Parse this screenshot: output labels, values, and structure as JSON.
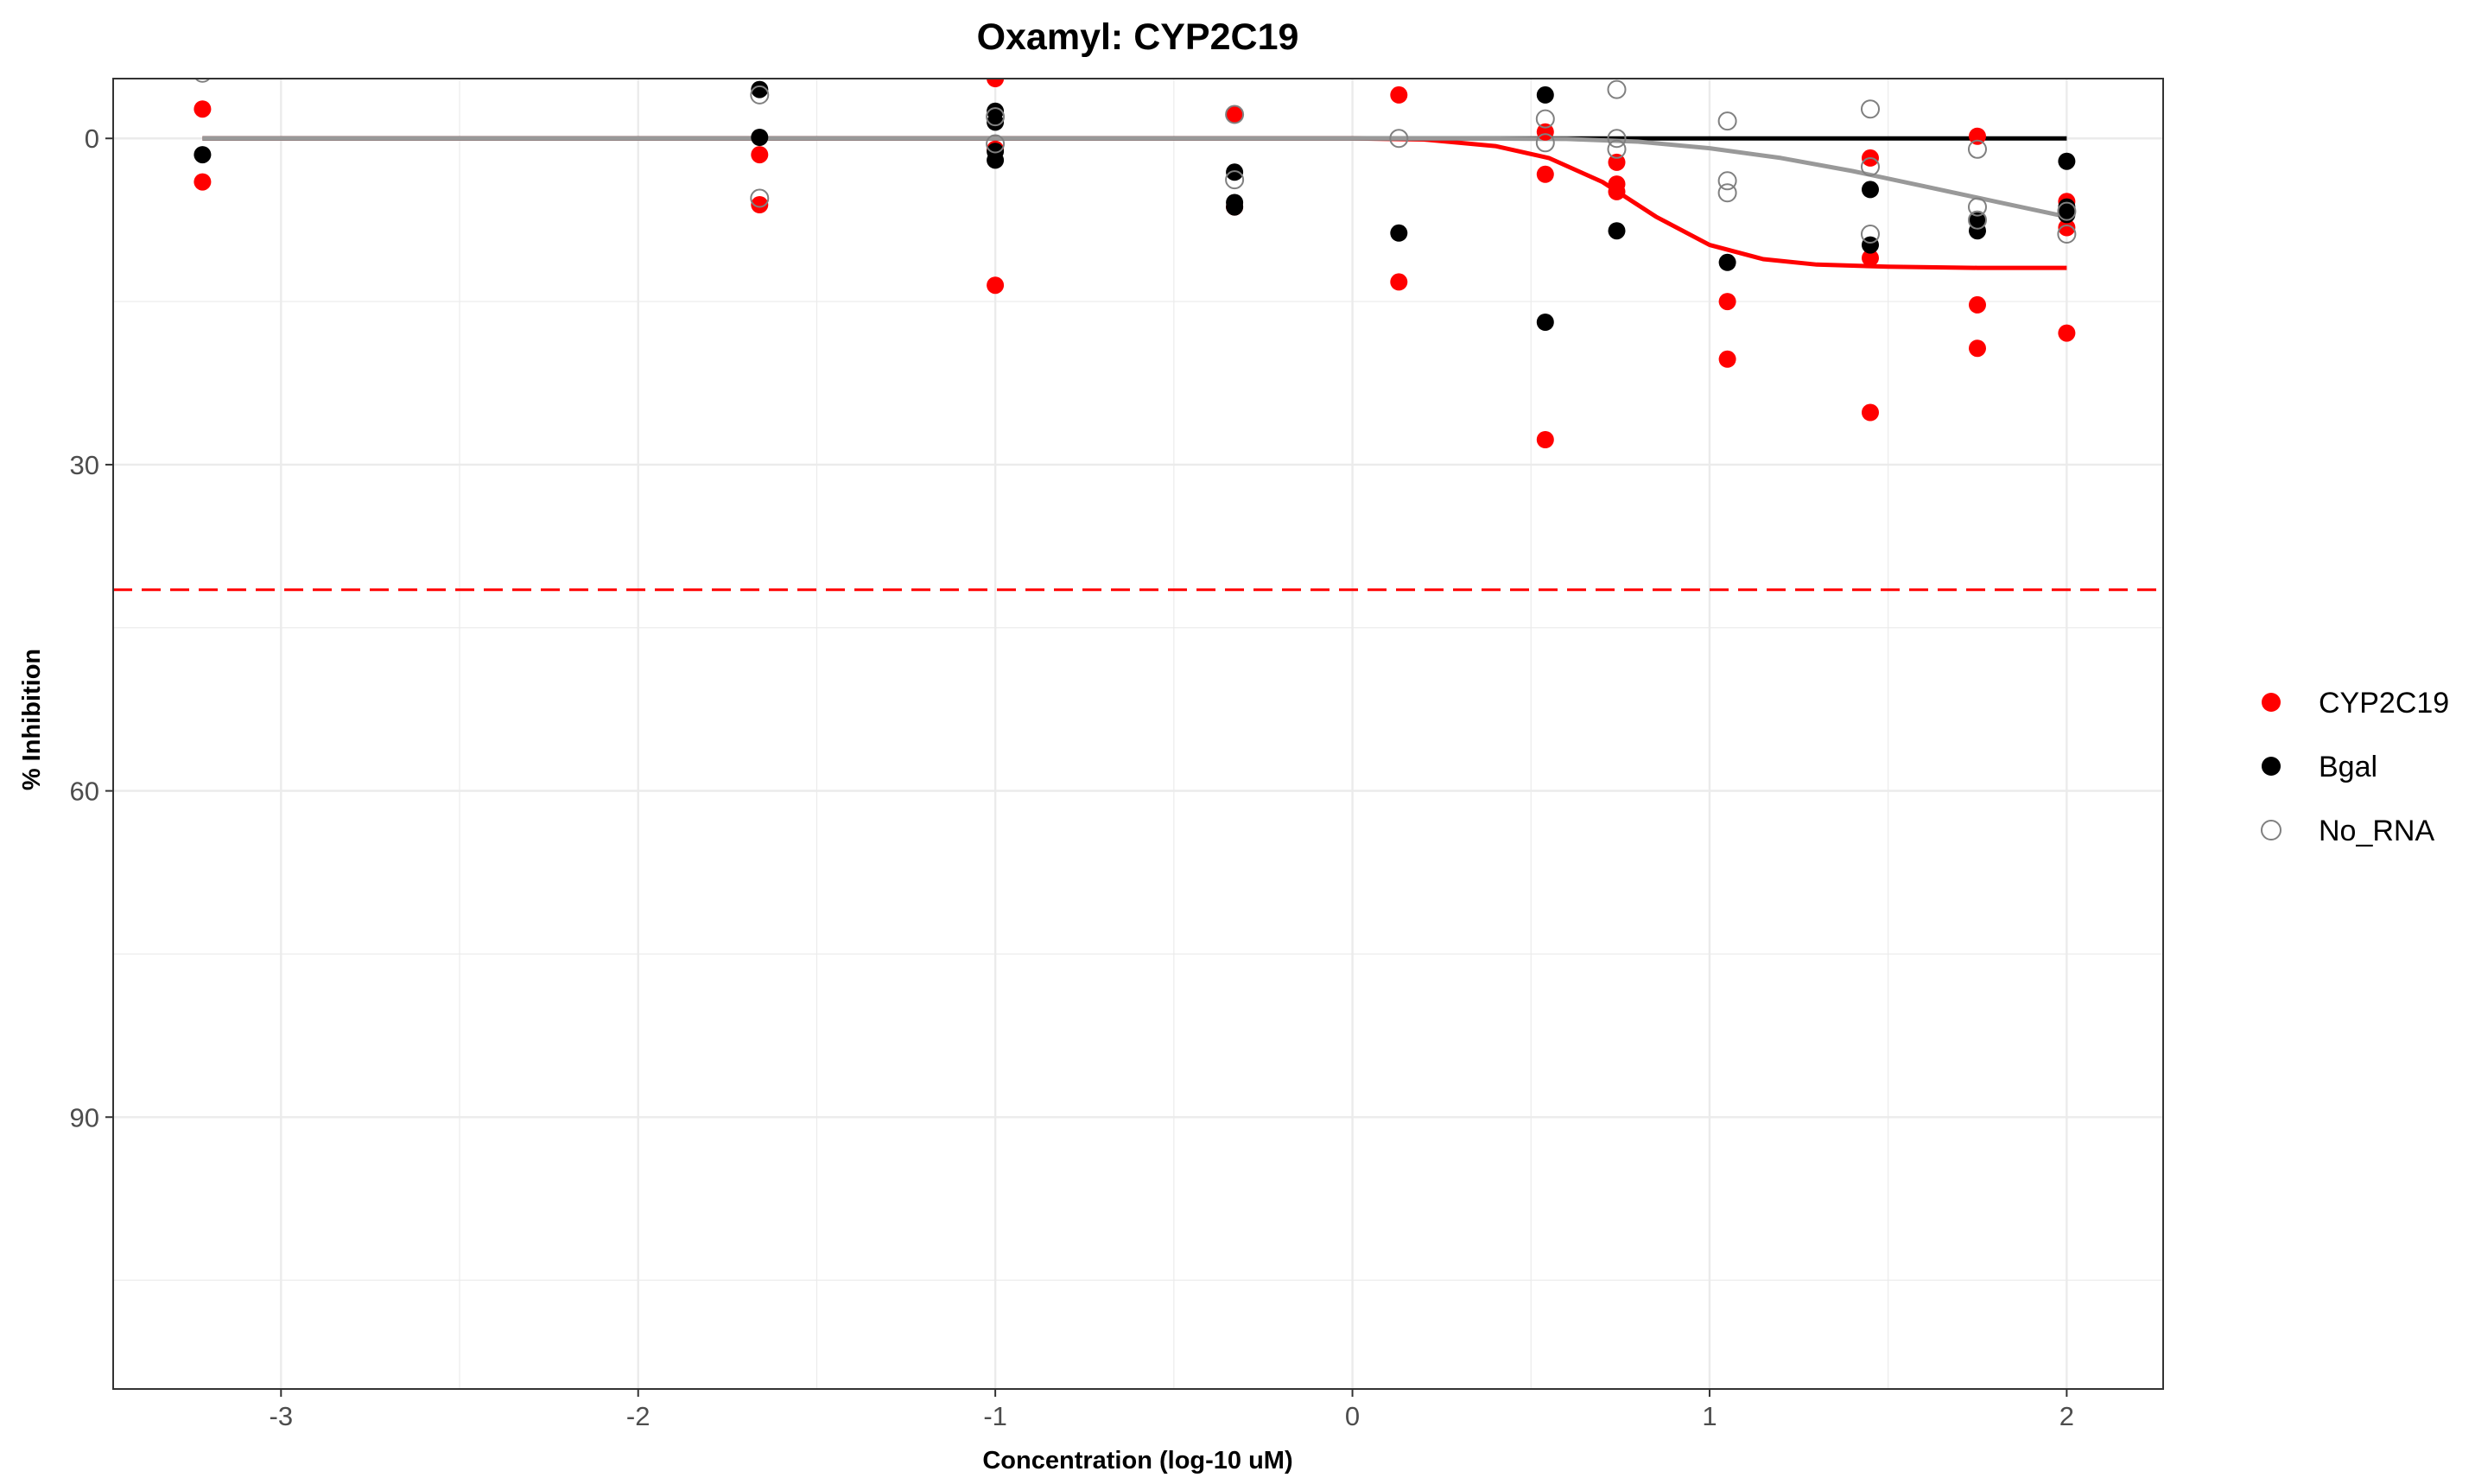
{
  "chart_data": {
    "type": "scatter",
    "title": "Oxamyl: CYP2C19",
    "xlabel": "Concentration (log-10 uM)",
    "ylabel": "% Inhibition",
    "xlim": [
      -3.47,
      2.27
    ],
    "ylim": [
      115,
      -5.5
    ],
    "y_reversed": true,
    "x_ticks": [
      -3,
      -2,
      -1,
      0,
      1,
      2
    ],
    "y_ticks": [
      0,
      30,
      60,
      90
    ],
    "grid": true,
    "legend_position": "right",
    "threshold_line": {
      "y": 41.5,
      "color": "#ff0000",
      "style": "dashed"
    },
    "series": [
      {
        "name": "CYP2C19",
        "color": "#ff0000",
        "marker": "filled",
        "points": [
          [
            -3.22,
            -2.7
          ],
          [
            -3.22,
            4.0
          ],
          [
            -1.66,
            1.5
          ],
          [
            -1.66,
            6.1
          ],
          [
            -1.0,
            -5.5
          ],
          [
            -1.0,
            1.0
          ],
          [
            -1.0,
            13.5
          ],
          [
            -0.33,
            -2.2
          ],
          [
            -0.33,
            6.3
          ],
          [
            0.13,
            -4.0
          ],
          [
            0.13,
            13.2
          ],
          [
            0.54,
            -0.6
          ],
          [
            0.54,
            3.3
          ],
          [
            0.54,
            27.7
          ],
          [
            0.74,
            2.2
          ],
          [
            0.74,
            4.2
          ],
          [
            0.74,
            4.9
          ],
          [
            1.05,
            15.0
          ],
          [
            1.05,
            20.3
          ],
          [
            1.45,
            1.8
          ],
          [
            1.45,
            11.0
          ],
          [
            1.45,
            25.2
          ],
          [
            1.75,
            -0.2
          ],
          [
            1.75,
            15.3
          ],
          [
            1.75,
            19.3
          ],
          [
            2.0,
            5.8
          ],
          [
            2.0,
            8.2
          ],
          [
            2.0,
            17.9
          ]
        ],
        "curve": [
          [
            -3.22,
            0.0
          ],
          [
            0.0,
            0.0
          ],
          [
            0.2,
            0.1
          ],
          [
            0.4,
            0.7
          ],
          [
            0.55,
            1.8
          ],
          [
            0.7,
            4.0
          ],
          [
            0.85,
            7.2
          ],
          [
            1.0,
            9.8
          ],
          [
            1.15,
            11.1
          ],
          [
            1.3,
            11.6
          ],
          [
            1.5,
            11.8
          ],
          [
            1.75,
            11.9
          ],
          [
            2.0,
            11.9
          ]
        ]
      },
      {
        "name": "Bgal",
        "color": "#000000",
        "marker": "filled",
        "points": [
          [
            -3.22,
            1.5
          ],
          [
            -1.66,
            -4.5
          ],
          [
            -1.66,
            -0.1
          ],
          [
            -1.0,
            -2.5
          ],
          [
            -1.0,
            -1.5
          ],
          [
            -1.0,
            1.2
          ],
          [
            -1.0,
            2.0
          ],
          [
            -0.33,
            3.1
          ],
          [
            -0.33,
            5.9
          ],
          [
            -0.33,
            6.3
          ],
          [
            0.13,
            8.7
          ],
          [
            0.54,
            -4.0
          ],
          [
            0.54,
            16.9
          ],
          [
            0.74,
            8.5
          ],
          [
            1.05,
            11.4
          ],
          [
            1.45,
            4.7
          ],
          [
            1.45,
            9.8
          ],
          [
            1.75,
            7.6
          ],
          [
            1.75,
            8.5
          ],
          [
            2.0,
            2.1
          ],
          [
            2.0,
            6.3
          ],
          [
            2.0,
            7.0
          ]
        ],
        "curve": [
          [
            -3.22,
            0.0
          ],
          [
            2.0,
            0.0
          ]
        ]
      },
      {
        "name": "No_RNA",
        "color": "#808080",
        "marker": "open",
        "points": [
          [
            -3.22,
            -6.0
          ],
          [
            -1.66,
            -4.0
          ],
          [
            -1.66,
            5.5
          ],
          [
            -1.0,
            -2.0
          ],
          [
            -1.0,
            0.5
          ],
          [
            -0.33,
            -2.2
          ],
          [
            -0.33,
            3.8
          ],
          [
            0.13,
            0.0
          ],
          [
            0.54,
            -1.8
          ],
          [
            0.54,
            0.4
          ],
          [
            0.74,
            -4.5
          ],
          [
            0.74,
            0.0
          ],
          [
            0.74,
            1.0
          ],
          [
            1.05,
            -1.6
          ],
          [
            1.05,
            3.9
          ],
          [
            1.05,
            5.0
          ],
          [
            1.45,
            -2.7
          ],
          [
            1.45,
            2.6
          ],
          [
            1.45,
            8.8
          ],
          [
            1.75,
            1.0
          ],
          [
            1.75,
            6.3
          ],
          [
            1.75,
            7.5
          ],
          [
            2.0,
            6.7
          ],
          [
            2.0,
            8.8
          ]
        ],
        "curve": [
          [
            -3.22,
            0.0
          ],
          [
            0.3,
            0.0
          ],
          [
            0.6,
            0.05
          ],
          [
            0.8,
            0.3
          ],
          [
            1.0,
            0.9
          ],
          [
            1.2,
            1.8
          ],
          [
            1.4,
            3.0
          ],
          [
            1.6,
            4.4
          ],
          [
            1.8,
            5.8
          ],
          [
            2.0,
            7.2
          ]
        ]
      }
    ]
  }
}
